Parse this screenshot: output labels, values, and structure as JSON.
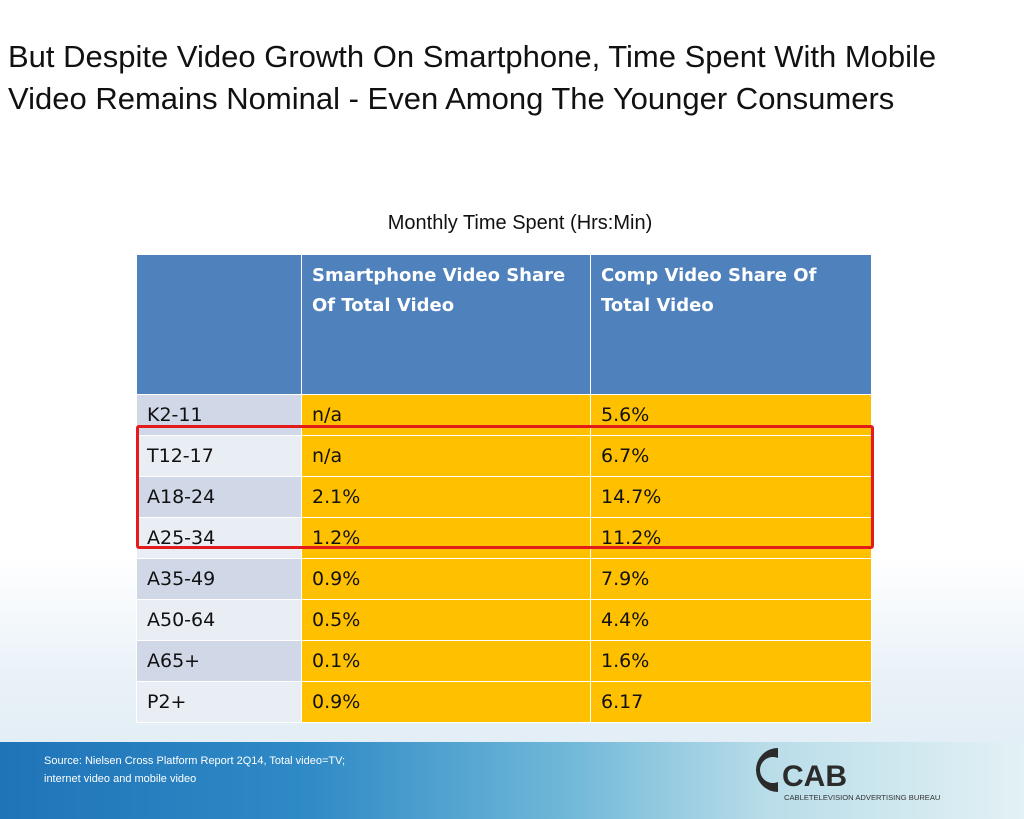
{
  "slide": {
    "title": "But Despite Video Growth On Smartphone, Time Spent With Mobile Video Remains Nominal - Even Among The Younger Consumers",
    "table_caption": "Monthly Time Spent (Hrs:Min)",
    "source": "Source: Nielsen Cross Platform Report 2Q14, Total video=TV; internet video and mobile video"
  },
  "table": {
    "headers": [
      "",
      "Smartphone Video Share Of Total Video",
      "Comp Video Share Of Total Video"
    ],
    "rows": [
      [
        "K2-11",
        "n/a",
        "5.6%"
      ],
      [
        "T12-17",
        "n/a",
        "6.7%"
      ],
      [
        "A18-24",
        "2.1%",
        "14.7%"
      ],
      [
        "A25-34",
        "1.2%",
        "11.2%"
      ],
      [
        "A35-49",
        "0.9%",
        "7.9%"
      ],
      [
        "A50-64",
        "0.5%",
        "4.4%"
      ],
      [
        "A65+",
        "0.1%",
        "1.6%"
      ],
      [
        "P2+",
        "0.9%",
        "6.17"
      ]
    ]
  },
  "logo": {
    "mark": "CAB",
    "tagline": "CABLETELEVISION ADVERTISING BUREAU"
  },
  "colors": {
    "header_blue": "#4f81bd",
    "value_yellow": "#ffc000",
    "row_label": "#d0d8e8",
    "highlight_red": "#e41b1b"
  }
}
